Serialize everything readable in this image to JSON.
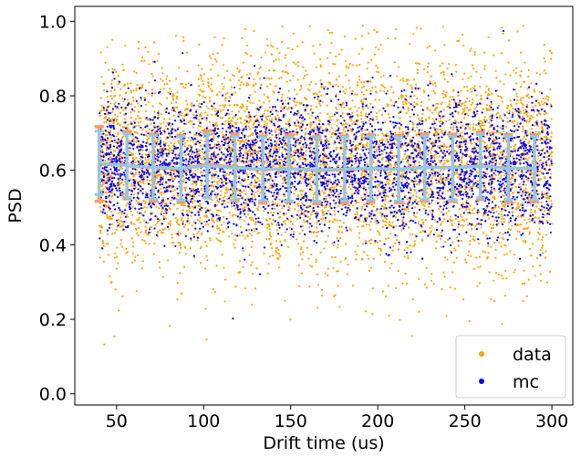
{
  "chart_data": {
    "type": "scatter",
    "title": "",
    "xlabel": "Drift time (us)",
    "ylabel": "PSD",
    "xlim": [
      26,
      312
    ],
    "ylim": [
      -0.03,
      1.04
    ],
    "xticks": [
      50,
      100,
      150,
      200,
      250,
      300
    ],
    "yticks": [
      0.0,
      0.2,
      0.4,
      0.6,
      0.8,
      1.0
    ],
    "xtick_labels": [
      "50",
      "100",
      "150",
      "200",
      "250",
      "300"
    ],
    "ytick_labels": [
      "0.0",
      "0.2",
      "0.4",
      "0.6",
      "0.8",
      "1.0"
    ],
    "grid": false,
    "legend_position": "lower-right",
    "scatter_x_range": [
      40,
      300
    ],
    "series": [
      {
        "name": "data",
        "color": "#ffa500",
        "center": 0.62,
        "spread": 0.14
      },
      {
        "name": "mc",
        "color": "#0000ff",
        "center": 0.61,
        "spread": 0.085
      }
    ],
    "profile_data": {
      "color": "#ff9966",
      "x": [
        40,
        56,
        71,
        87,
        102,
        118,
        134,
        149,
        165,
        181,
        196,
        212,
        227,
        243,
        259,
        275,
        290
      ],
      "y": [
        0.617,
        0.614,
        0.607,
        0.604,
        0.616,
        0.608,
        0.602,
        0.605,
        0.6,
        0.602,
        0.605,
        0.603,
        0.608,
        0.607,
        0.612,
        0.605,
        0.605
      ],
      "yerr": [
        0.1,
        0.09,
        0.09,
        0.09,
        0.09,
        0.09,
        0.09,
        0.09,
        0.09,
        0.09,
        0.09,
        0.09,
        0.09,
        0.09,
        0.09,
        0.09,
        0.09
      ]
    },
    "profile_mc": {
      "color": "#88ccee",
      "x": [
        40,
        56,
        71,
        87,
        102,
        118,
        134,
        149,
        165,
        181,
        196,
        212,
        227,
        243,
        259,
        275,
        290
      ],
      "y": [
        0.62,
        0.612,
        0.608,
        0.605,
        0.612,
        0.606,
        0.604,
        0.603,
        0.602,
        0.604,
        0.606,
        0.603,
        0.607,
        0.606,
        0.611,
        0.606,
        0.606
      ],
      "yerr": [
        0.085,
        0.085,
        0.085,
        0.085,
        0.085,
        0.085,
        0.085,
        0.085,
        0.085,
        0.085,
        0.085,
        0.085,
        0.085,
        0.085,
        0.085,
        0.085,
        0.085
      ]
    }
  }
}
